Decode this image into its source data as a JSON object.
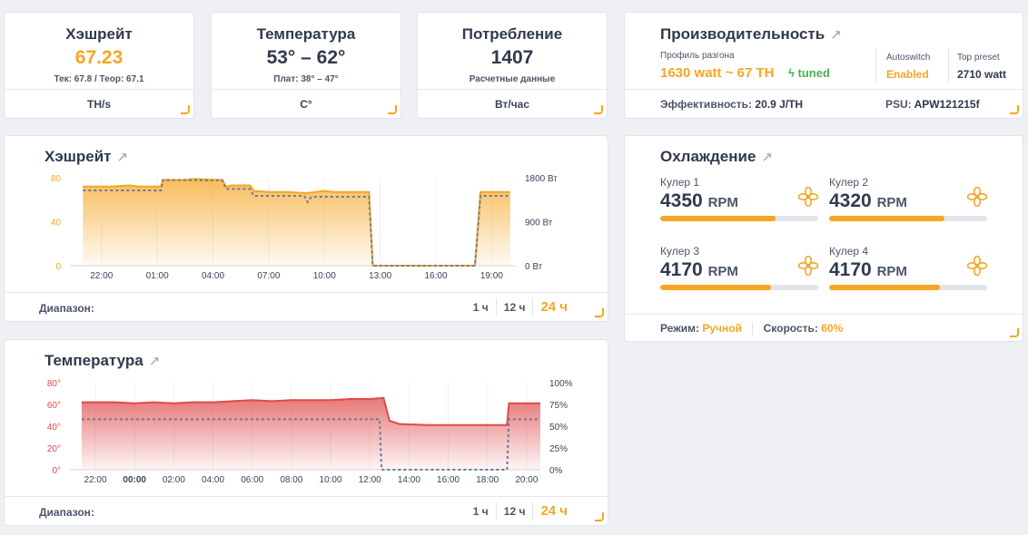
{
  "stats": [
    {
      "title": "Хэшрейт",
      "value": "67.23",
      "sub": "Тек: 67.8 / Теор: 67.1",
      "unit": "TH/s"
    },
    {
      "title": "Температура",
      "value": "53° – 62°",
      "sub": "Плат: 38° – 47°",
      "unit": "C°"
    },
    {
      "title": "Потребление",
      "value": "1407",
      "sub": "Расчетные данные",
      "unit": "Вт/час"
    }
  ],
  "performance": {
    "title": "Производительность",
    "profile_label": "Профиль разгона",
    "profile_value": "1630 watt ~ 67 TH",
    "tuned": "tuned",
    "autoswitch_label": "Autoswitch",
    "autoswitch_value": "Enabled",
    "top_preset_label": "Top preset",
    "top_preset_value": "2710 watt",
    "efficiency_label": "Эффективность:",
    "efficiency_value": "20.9 J/TH",
    "psu_label": "PSU:",
    "psu_value": "APW121215f"
  },
  "cooling": {
    "title": "Охлаждение",
    "coolers": [
      {
        "name": "Кулер 1",
        "rpm": "4350",
        "unit": "RPM",
        "level": 0.73
      },
      {
        "name": "Кулер 2",
        "rpm": "4320",
        "unit": "RPM",
        "level": 0.73
      },
      {
        "name": "Кулер 3",
        "rpm": "4170",
        "unit": "RPM",
        "level": 0.7
      },
      {
        "name": "Кулер 4",
        "rpm": "4170",
        "unit": "RPM",
        "level": 0.7
      }
    ],
    "mode_label": "Режим:",
    "mode_value": "Ручной",
    "speed_label": "Скорость:",
    "speed_value": "60%"
  },
  "hash_panel": {
    "title": "Хэшрейт",
    "range_label": "Диапазон:",
    "ranges": [
      "1 ч",
      "12 ч",
      "24 ч"
    ]
  },
  "temp_panel": {
    "title": "Температура",
    "range_label": "Диапазон:",
    "ranges": [
      "1 ч",
      "12 ч",
      "24 ч"
    ]
  },
  "chart_data": [
    {
      "type": "area",
      "x_ticks": [
        "22:00",
        "01:00",
        "04:00",
        "07:00",
        "10:00",
        "13:00",
        "16:00",
        "19:00"
      ],
      "y_left_ticks": [
        "0",
        "40",
        "80"
      ],
      "y_right_ticks": [
        "0 Вт",
        "900 Вт",
        "1800 Вт"
      ],
      "ylim_left": [
        0,
        80
      ],
      "ylim_right": [
        0,
        1800
      ],
      "x_hours": [
        -3,
        17.2
      ],
      "series": [
        {
          "color": "#f5a623",
          "axis": "left",
          "points": [
            [
              -3,
              72
            ],
            [
              -1.5,
              72
            ],
            [
              -0.5,
              73
            ],
            [
              0,
              72
            ],
            [
              1,
              72
            ],
            [
              1.2,
              72
            ],
            [
              1.3,
              78
            ],
            [
              2.5,
              78
            ],
            [
              3,
              79
            ],
            [
              4,
              78
            ],
            [
              4.5,
              78
            ],
            [
              4.7,
              72
            ],
            [
              5,
              73
            ],
            [
              6,
              73
            ],
            [
              6.2,
              68
            ],
            [
              7,
              67
            ],
            [
              8,
              67
            ],
            [
              9,
              66
            ],
            [
              10,
              68
            ],
            [
              10.5,
              67
            ],
            [
              11,
              67
            ],
            [
              12,
              67
            ],
            [
              12.4,
              67
            ],
            [
              12.6,
              0
            ],
            [
              13,
              0
            ],
            [
              16,
              0
            ],
            [
              18.1,
              0
            ],
            [
              18.4,
              67
            ],
            [
              19,
              67
            ],
            [
              19.5,
              67
            ],
            [
              20,
              67
            ]
          ]
        },
        {
          "color": "#6b7a99",
          "axis": "right",
          "dashed": true,
          "points": [
            [
              -3,
              1540
            ],
            [
              1.2,
              1540
            ],
            [
              1.3,
              1750
            ],
            [
              4.5,
              1750
            ],
            [
              4.7,
              1570
            ],
            [
              6,
              1570
            ],
            [
              6.2,
              1430
            ],
            [
              8.9,
              1430
            ],
            [
              9.1,
              1300
            ],
            [
              9.3,
              1410
            ],
            [
              12.4,
              1410
            ],
            [
              12.6,
              0
            ],
            [
              18.1,
              0
            ],
            [
              18.4,
              1430
            ],
            [
              20,
              1430
            ]
          ]
        }
      ]
    },
    {
      "type": "area",
      "x_ticks": [
        "22:00",
        "00:00",
        "02:00",
        "04:00",
        "06:00",
        "08:00",
        "10:00",
        "12:00",
        "14:00",
        "16:00",
        "18:00",
        "20:00"
      ],
      "y_left_ticks": [
        "0°",
        "20°",
        "40°",
        "60°",
        "80°"
      ],
      "y_right_ticks": [
        "0%",
        "25%",
        "50%",
        "75%",
        "100%"
      ],
      "ylim_left": [
        0,
        80
      ],
      "ylim_right": [
        0,
        100
      ],
      "series": [
        {
          "color": "#e04a4a",
          "axis": "left",
          "points": [
            [
              -2.7,
              62
            ],
            [
              -1,
              62
            ],
            [
              0,
              61
            ],
            [
              1,
              62
            ],
            [
              2,
              61
            ],
            [
              3,
              62
            ],
            [
              4,
              62
            ],
            [
              5,
              63
            ],
            [
              6,
              64
            ],
            [
              7,
              63
            ],
            [
              8,
              64
            ],
            [
              9,
              64
            ],
            [
              10,
              64
            ],
            [
              11,
              65
            ],
            [
              12,
              65
            ],
            [
              12.7,
              66
            ],
            [
              13,
              45
            ],
            [
              13.5,
              42
            ],
            [
              15,
              41
            ],
            [
              16,
              41
            ],
            [
              17,
              41
            ],
            [
              18,
              41
            ],
            [
              19,
              41
            ],
            [
              19.1,
              61
            ],
            [
              19.5,
              61
            ],
            [
              20.7,
              61
            ]
          ]
        },
        {
          "color": "#6b7a99",
          "axis": "right",
          "dashed": true,
          "points": [
            [
              -2.7,
              58
            ],
            [
              12.5,
              58
            ],
            [
              12.6,
              0
            ],
            [
              19.0,
              0
            ],
            [
              19.1,
              58
            ],
            [
              20.7,
              58
            ]
          ]
        }
      ]
    }
  ]
}
